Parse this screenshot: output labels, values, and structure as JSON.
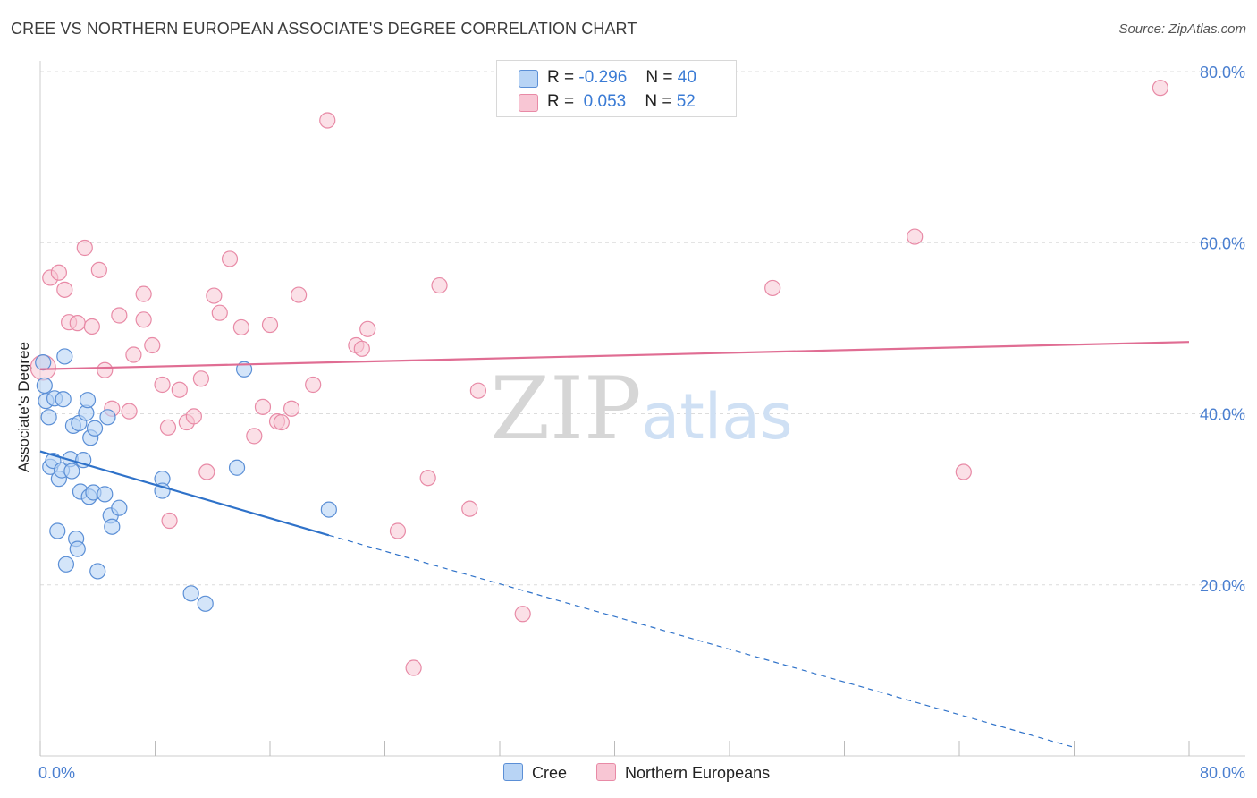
{
  "title": "CREE VS NORTHERN EUROPEAN ASSOCIATE'S DEGREE CORRELATION CHART",
  "source": "Source: ZipAtlas.com",
  "colors": {
    "cree_fill": "#b8d4f5",
    "cree_stroke": "#5b8fd6",
    "cree_line": "#2f72c9",
    "ne_fill": "#f8c6d4",
    "ne_stroke": "#e88aa6",
    "ne_line": "#e06d93",
    "axis_label": "#4a7fd0",
    "grid": "#dcdcdc"
  },
  "legend": {
    "cree": {
      "r_label": "R =",
      "r_value": "-0.296",
      "n_label": "N =",
      "n_value": "40"
    },
    "ne": {
      "r_label": "R =",
      "r_value": " 0.053",
      "n_label": "N =",
      "n_value": "52"
    }
  },
  "bottom_legend": {
    "cree": "Cree",
    "ne": "Northern Europeans"
  },
  "watermark": {
    "zip": "ZIP",
    "atlas": "atlas"
  },
  "chart_data": {
    "type": "scatter",
    "title": "CREE VS NORTHERN EUROPEAN ASSOCIATE'S DEGREE CORRELATION CHART",
    "xlabel": "",
    "ylabel": "Associate's Degree",
    "xlim": [
      0,
      80
    ],
    "ylim": [
      0,
      80
    ],
    "x_tick_labels": [
      "0.0%",
      "80.0%"
    ],
    "y_ticks": [
      20,
      40,
      60,
      80
    ],
    "y_tick_labels": [
      "20.0%",
      "40.0%",
      "60.0%",
      "80.0%"
    ],
    "series": [
      {
        "name": "Cree",
        "points": [
          [
            0.2,
            46.0
          ],
          [
            0.3,
            43.3
          ],
          [
            0.4,
            41.5
          ],
          [
            0.6,
            39.6
          ],
          [
            0.7,
            33.8
          ],
          [
            0.9,
            34.5
          ],
          [
            1.0,
            41.8
          ],
          [
            1.2,
            26.3
          ],
          [
            1.3,
            32.4
          ],
          [
            1.5,
            33.4
          ],
          [
            1.6,
            41.7
          ],
          [
            1.7,
            46.7
          ],
          [
            1.8,
            22.4
          ],
          [
            2.1,
            34.7
          ],
          [
            2.2,
            33.3
          ],
          [
            2.3,
            38.6
          ],
          [
            2.5,
            25.4
          ],
          [
            2.6,
            24.2
          ],
          [
            2.7,
            38.9
          ],
          [
            2.8,
            30.9
          ],
          [
            3.0,
            34.6
          ],
          [
            3.2,
            40.1
          ],
          [
            3.3,
            41.6
          ],
          [
            3.4,
            30.3
          ],
          [
            3.5,
            37.2
          ],
          [
            3.7,
            30.8
          ],
          [
            3.8,
            38.3
          ],
          [
            4.0,
            21.6
          ],
          [
            4.5,
            30.6
          ],
          [
            4.7,
            39.6
          ],
          [
            4.9,
            28.1
          ],
          [
            5.0,
            26.8
          ],
          [
            5.5,
            29.0
          ],
          [
            8.5,
            32.4
          ],
          [
            8.5,
            31.0
          ],
          [
            10.5,
            19.0
          ],
          [
            11.5,
            17.8
          ],
          [
            13.7,
            33.7
          ],
          [
            14.2,
            45.2
          ],
          [
            20.1,
            28.8
          ]
        ],
        "trend": {
          "x": [
            0,
            20.1
          ],
          "y": [
            35.6,
            25.8
          ],
          "dashed_to": [
            72,
            1.0
          ]
        }
      },
      {
        "name": "Northern Europeans",
        "points": [
          [
            0.2,
            45.4
          ],
          [
            0.7,
            55.9
          ],
          [
            1.3,
            56.5
          ],
          [
            1.7,
            54.5
          ],
          [
            2.0,
            50.7
          ],
          [
            2.6,
            50.6
          ],
          [
            3.1,
            59.4
          ],
          [
            3.6,
            50.2
          ],
          [
            4.1,
            56.8
          ],
          [
            4.5,
            45.1
          ],
          [
            5.0,
            40.6
          ],
          [
            5.5,
            51.5
          ],
          [
            6.2,
            40.3
          ],
          [
            6.5,
            46.9
          ],
          [
            7.2,
            54.0
          ],
          [
            7.2,
            51.0
          ],
          [
            7.8,
            48.0
          ],
          [
            8.5,
            43.4
          ],
          [
            8.9,
            38.4
          ],
          [
            9.0,
            27.5
          ],
          [
            9.7,
            42.8
          ],
          [
            10.2,
            39.0
          ],
          [
            10.7,
            39.7
          ],
          [
            11.2,
            44.1
          ],
          [
            11.6,
            33.2
          ],
          [
            12.1,
            53.8
          ],
          [
            12.5,
            51.8
          ],
          [
            13.2,
            58.1
          ],
          [
            14.0,
            50.1
          ],
          [
            14.9,
            37.4
          ],
          [
            15.5,
            40.8
          ],
          [
            16.0,
            50.4
          ],
          [
            16.5,
            39.1
          ],
          [
            16.8,
            39.0
          ],
          [
            17.5,
            40.6
          ],
          [
            18.0,
            53.9
          ],
          [
            19.0,
            43.4
          ],
          [
            20.0,
            74.3
          ],
          [
            22.0,
            48.0
          ],
          [
            22.4,
            47.6
          ],
          [
            22.8,
            49.9
          ],
          [
            24.9,
            26.3
          ],
          [
            26.0,
            10.3
          ],
          [
            27.0,
            32.5
          ],
          [
            27.8,
            55.0
          ],
          [
            29.9,
            28.9
          ],
          [
            30.5,
            42.7
          ],
          [
            33.6,
            16.6
          ],
          [
            51.0,
            54.7
          ],
          [
            60.9,
            60.7
          ],
          [
            64.3,
            33.2
          ],
          [
            78.0,
            78.1
          ]
        ],
        "trend": {
          "x": [
            0,
            80
          ],
          "y": [
            45.2,
            48.4
          ]
        }
      }
    ]
  }
}
